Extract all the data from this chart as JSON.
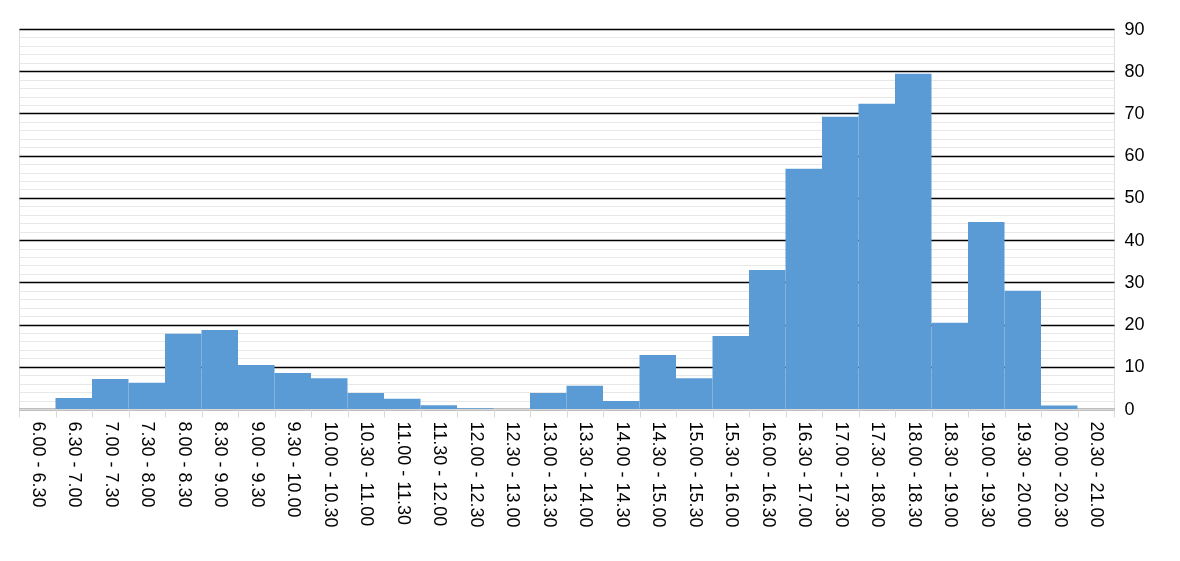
{
  "chart_data": {
    "type": "bar",
    "categories": [
      "6.00 - 6.30",
      "6.30 - 7.00",
      "7.00 - 7.30",
      "7.30 - 8.00",
      "8.00 - 8.30",
      "8.30 - 9.00",
      "9.00 - 9.30",
      "9.30 - 10.00",
      "10.00 - 10.30",
      "10.30 - 11.00",
      "11.00 - 11.30",
      "11.30 - 12.00",
      "12.00 - 12.30",
      "12.30 - 13.00",
      "13.00 - 13.30",
      "13.30 - 14.00",
      "14.00 - 14.30",
      "14.30 - 15.00",
      "15.00 - 15.30",
      "15.30 - 16.00",
      "16.00 - 16.30",
      "16.30 - 17.00",
      "17.00 - 17.30",
      "17.30 - 18.00",
      "18.00 - 18.30",
      "18.30 - 19.00",
      "19.00 - 19.30",
      "19.30 - 20.00",
      "20.00 - 20.30",
      "20.30 - 21.00"
    ],
    "values": [
      0,
      2.6,
      7.1,
      6.2,
      17.8,
      18.7,
      10.4,
      8.5,
      7.3,
      3.8,
      2.4,
      0.9,
      0.2,
      0,
      3.8,
      5.5,
      1.9,
      12.8,
      7.3,
      17.3,
      32.9,
      56.9,
      69.2,
      72.3,
      79.4,
      20.4,
      44.3,
      28,
      0.8,
      0
    ],
    "color": "#5b9bd5",
    "ylim": [
      0,
      90
    ],
    "yticks": [
      0,
      {
        "value": 2,
        "label": null
      },
      {
        "value": 4,
        "label": null
      },
      {
        "value": 6,
        "label": null
      },
      {
        "value": 8,
        "label": null
      },
      10,
      {
        "value": 12,
        "label": null
      },
      {
        "value": 14,
        "label": null
      },
      {
        "value": 16,
        "label": null
      },
      {
        "value": 18,
        "label": null
      },
      20,
      {
        "value": 22,
        "label": null
      },
      {
        "value": 24,
        "label": null
      },
      {
        "value": 26,
        "label": null
      },
      {
        "value": 28,
        "label": null
      },
      30,
      {
        "value": 32,
        "label": null
      },
      {
        "value": 34,
        "label": null
      },
      {
        "value": 36,
        "label": null
      },
      {
        "value": 38,
        "label": null
      },
      40,
      {
        "value": 42,
        "label": null
      },
      {
        "value": 44,
        "label": null
      },
      {
        "value": 46,
        "label": null
      },
      {
        "value": 48,
        "label": null
      },
      50,
      {
        "value": 52,
        "label": null
      },
      {
        "value": 54,
        "label": null
      },
      {
        "value": 56,
        "label": null
      },
      {
        "value": 58,
        "label": null
      },
      60,
      {
        "value": 62,
        "label": null
      },
      {
        "value": 64,
        "label": null
      },
      {
        "value": 66,
        "label": null
      },
      {
        "value": 68,
        "label": null
      },
      70,
      {
        "value": 72,
        "label": null
      },
      {
        "value": 74,
        "label": null
      },
      {
        "value": 76,
        "label": null
      },
      {
        "value": 78,
        "label": null
      },
      80,
      {
        "value": 82,
        "label": null
      },
      {
        "value": 84,
        "label": null
      },
      {
        "value": 86,
        "label": null
      },
      {
        "value": 88,
        "label": null
      },
      90
    ],
    "grid": true
  }
}
